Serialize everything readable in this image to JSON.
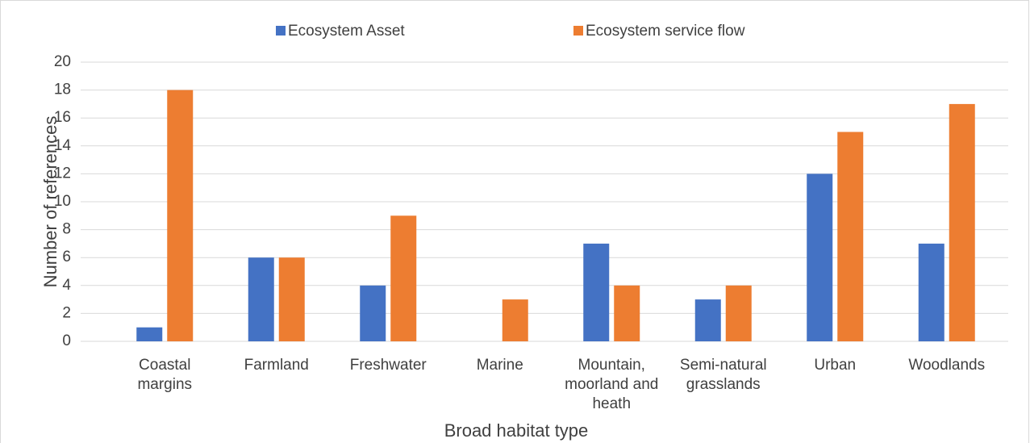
{
  "chart_data": {
    "type": "bar",
    "y_label": "Number of references",
    "x_label": "Broad habitat type",
    "categories": [
      "Coastal margins",
      "Farmland",
      "Freshwater",
      "Marine",
      "Mountain, moorland and heath",
      "Semi-natural grasslands",
      "Urban",
      "Woodlands"
    ],
    "series": [
      {
        "name": "Ecosystem Asset",
        "color": "#4472c4",
        "values": [
          1,
          6,
          4,
          0,
          7,
          3,
          12,
          7
        ]
      },
      {
        "name": "Ecosystem service flow",
        "color": "#ed7d31",
        "values": [
          18,
          6,
          9,
          3,
          4,
          4,
          15,
          17
        ]
      }
    ],
    "ylim": [
      0,
      20
    ],
    "yticks": [
      0,
      2,
      4,
      6,
      8,
      10,
      12,
      14,
      16,
      18,
      20
    ],
    "grid": true,
    "legend": "top"
  }
}
